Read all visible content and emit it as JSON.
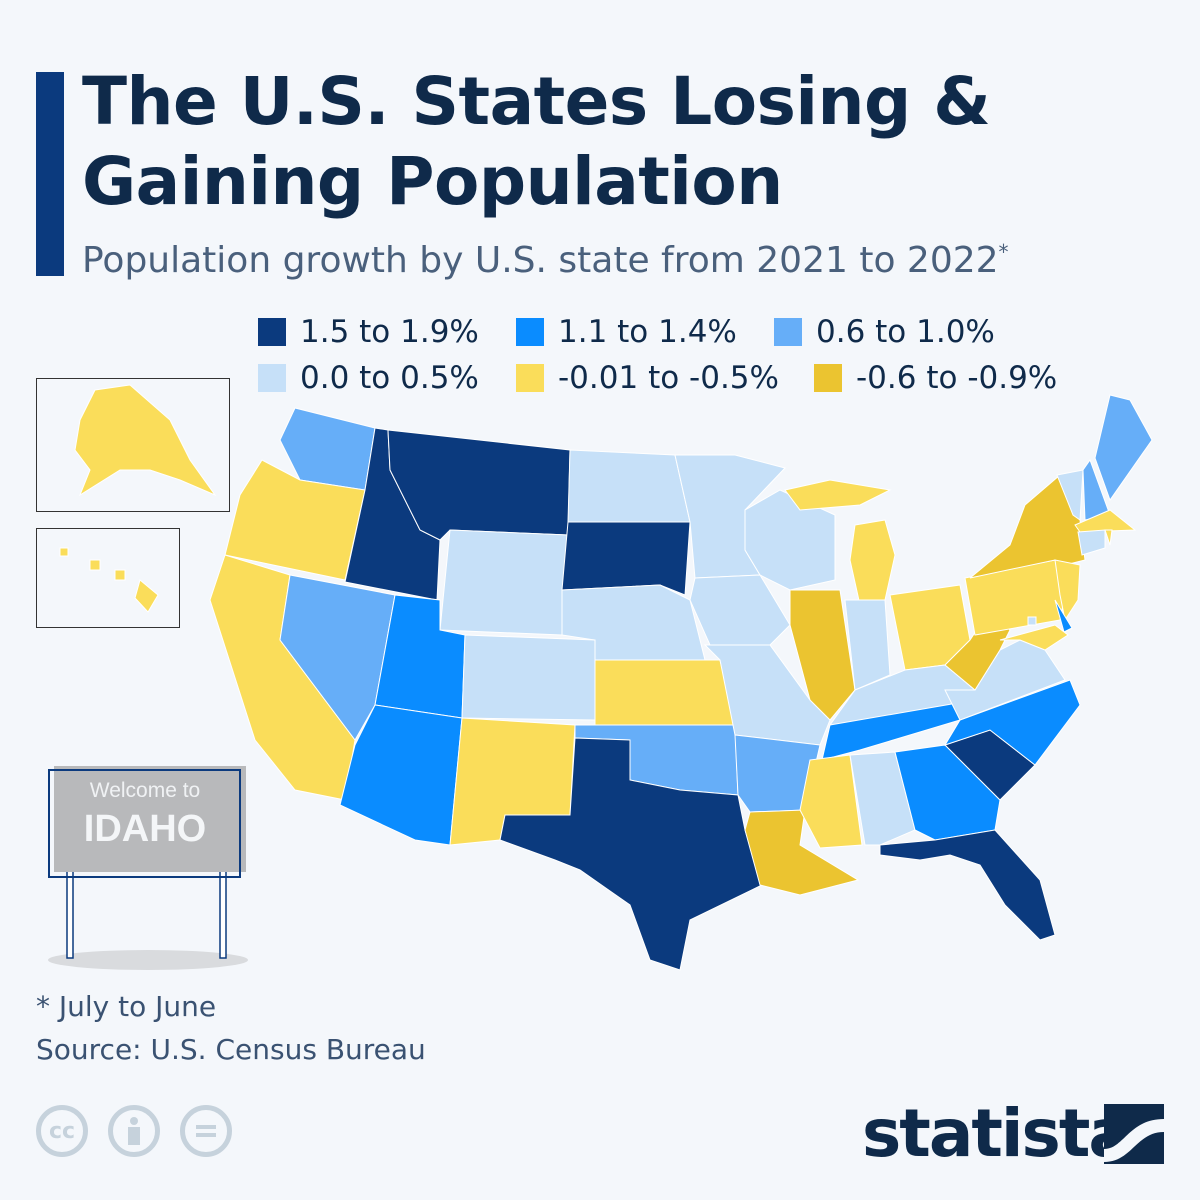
{
  "title_line1": "The U.S. States Losing &",
  "title_line2": "Gaining Population",
  "subtitle": "Population growth by U.S. state from 2021 to 2022",
  "subtitle_mark": "*",
  "legend": [
    {
      "label": "1.5 to 1.9%",
      "color": "#0b3a7e"
    },
    {
      "label": "1.1 to 1.4%",
      "color": "#0a8cff"
    },
    {
      "label": "0.6 to 1.0%",
      "color": "#66aef8"
    },
    {
      "label": "0.0 to 0.5%",
      "color": "#c6e0f8"
    },
    {
      "label": "-0.01 to -0.5%",
      "color": "#fadd5a"
    },
    {
      "label": "-0.6 to -0.9%",
      "color": "#ebc430"
    }
  ],
  "states": {
    "WA": 2,
    "OR": 4,
    "ID": 0,
    "MT": 0,
    "WY": 3,
    "ND": 3,
    "SD": 0,
    "NE": 3,
    "CA": 4,
    "NV": 2,
    "UT": 1,
    "AZ": 1,
    "CO": 3,
    "NM": 4,
    "KS": 4,
    "OK": 2,
    "TX": 0,
    "MN": 3,
    "IA": 3,
    "MO": 3,
    "AR": 2,
    "LA": 5,
    "WI": 3,
    "IL": 5,
    "MI": 4,
    "IN": 3,
    "OH": 4,
    "KY": 3,
    "TN": 1,
    "MS": 4,
    "AL": 3,
    "GA": 1,
    "FL": 0,
    "SC": 0,
    "NC": 1,
    "VA": 3,
    "WV": 5,
    "PA": 4,
    "NY": 5,
    "NJ": 4,
    "DE": 1,
    "MD": 4,
    "DC": 3,
    "VT": 3,
    "NH": 2,
    "ME": 2,
    "MA": 4,
    "CT": 3,
    "RI": 4,
    "AK": 4,
    "HI": 4
  },
  "sign": {
    "line1": "Welcome to",
    "line2": "IDAHO"
  },
  "footnote": "* July to June",
  "source": "Source: U.S. Census Bureau",
  "license_icons": [
    "cc-icon",
    "attribution-icon",
    "no-derivatives-icon"
  ],
  "cc_text": "cc",
  "brand": "statista"
}
